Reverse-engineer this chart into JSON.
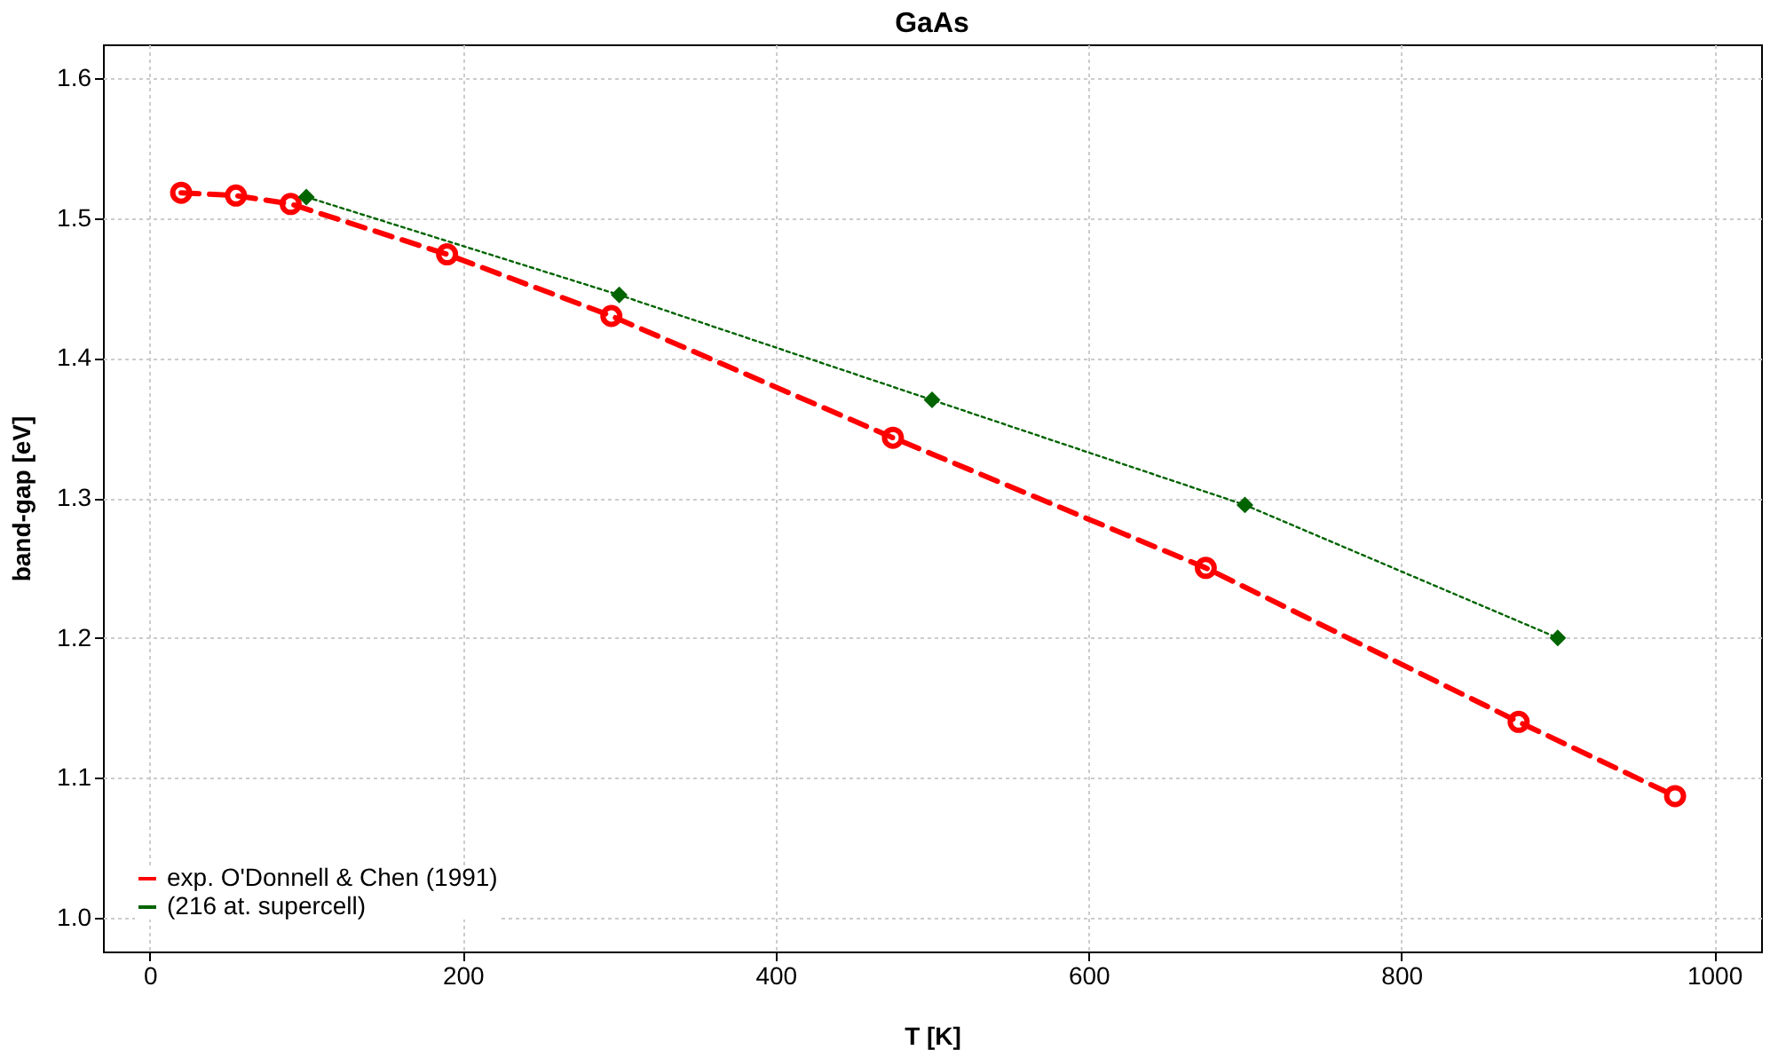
{
  "chart_data": {
    "type": "line",
    "title": "GaAs",
    "xlabel": "T [K]",
    "ylabel": "band-gap [eV]",
    "xlim": [
      -30,
      1030
    ],
    "xticks": [
      0,
      200,
      400,
      600,
      800,
      1000
    ],
    "ylim": [
      0.976,
      1.624
    ],
    "yticks": [
      {
        "value": 1,
        "label": "1.0"
      },
      1.1,
      1.2,
      1.3,
      1.4,
      1.5,
      1.6
    ],
    "grid": true,
    "legend": "bottom left",
    "series": [
      {
        "name": "exp. O'Donnell & Chen (1991)",
        "color": "#ff0000",
        "marker": "circle",
        "line_style": "dashed",
        "x": [
          20,
          55,
          90,
          190,
          295,
          475,
          675,
          875,
          975
        ],
        "values": [
          1.518,
          1.516,
          1.51,
          1.474,
          1.43,
          1.343,
          1.25,
          1.14,
          1.087
        ]
      },
      {
        "name": "(216 at. supercell)",
        "color": "#006400",
        "marker": "diamond",
        "line_style": "dotted",
        "x": [
          100,
          300,
          500,
          700,
          900
        ],
        "values": [
          1.515,
          1.445,
          1.37,
          1.295,
          1.2
        ]
      }
    ]
  }
}
